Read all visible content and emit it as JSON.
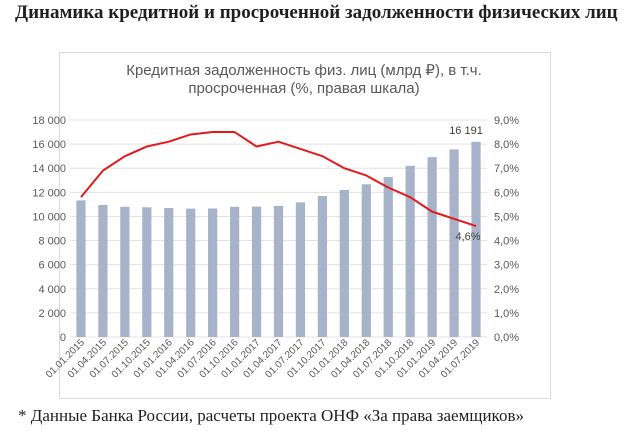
{
  "heading": "Динамика кредитной и просроченной задолженности физических лиц",
  "footnote": "* Данные Банка России, расчеты проекта ОНФ «За права заемщиков»",
  "chart_data": {
    "type": "bar+line",
    "title_lines": [
      "Кредитная задолженность  физ. лиц (млрд ₽), в т.ч.",
      "просроченная (%, правая шкала)"
    ],
    "categories": [
      "01.01.2015",
      "01.04.2015",
      "01.07.2015",
      "01.10.2015",
      "01.01.2016",
      "01.04.2016",
      "01.07.2016",
      "01.10.2016",
      "01.01.2017",
      "01.04.2017",
      "01.07.2017",
      "01.10.2017",
      "01.01.2018",
      "01.04.2018",
      "01.07.2018",
      "01.10.2018",
      "01.01.2019",
      "01.04.2019",
      "01.07.2019"
    ],
    "series": [
      {
        "kind": "bar",
        "axis": "left",
        "color": "#a6b3c9",
        "values": [
          11330,
          10950,
          10800,
          10760,
          10700,
          10650,
          10660,
          10800,
          10820,
          10870,
          11170,
          11700,
          12200,
          12670,
          13270,
          14200,
          14920,
          15560,
          16191
        ]
      },
      {
        "kind": "line",
        "axis": "right",
        "color": "#e31a1c",
        "values": [
          5.8,
          6.9,
          7.5,
          7.9,
          8.1,
          8.4,
          8.5,
          8.5,
          7.9,
          8.1,
          7.8,
          7.5,
          7.0,
          6.7,
          6.2,
          5.8,
          5.2,
          4.9,
          4.6
        ]
      }
    ],
    "left_axis": {
      "min": 0,
      "max": 18000,
      "ticks": [
        "0",
        "2 000",
        "4 000",
        "6 000",
        "8 000",
        "10 000",
        "12 000",
        "14 000",
        "16 000",
        "18 000"
      ]
    },
    "right_axis": {
      "min": 0,
      "max": 9,
      "ticks": [
        "0,0%",
        "1,0%",
        "2,0%",
        "3,0%",
        "4,0%",
        "5,0%",
        "6,0%",
        "7,0%",
        "8,0%",
        "9,0%"
      ]
    },
    "grid": true,
    "annotations": [
      {
        "series": 0,
        "index": 18,
        "text": "16 191"
      },
      {
        "series": 1,
        "index": 18,
        "text": "4,6%"
      }
    ]
  }
}
